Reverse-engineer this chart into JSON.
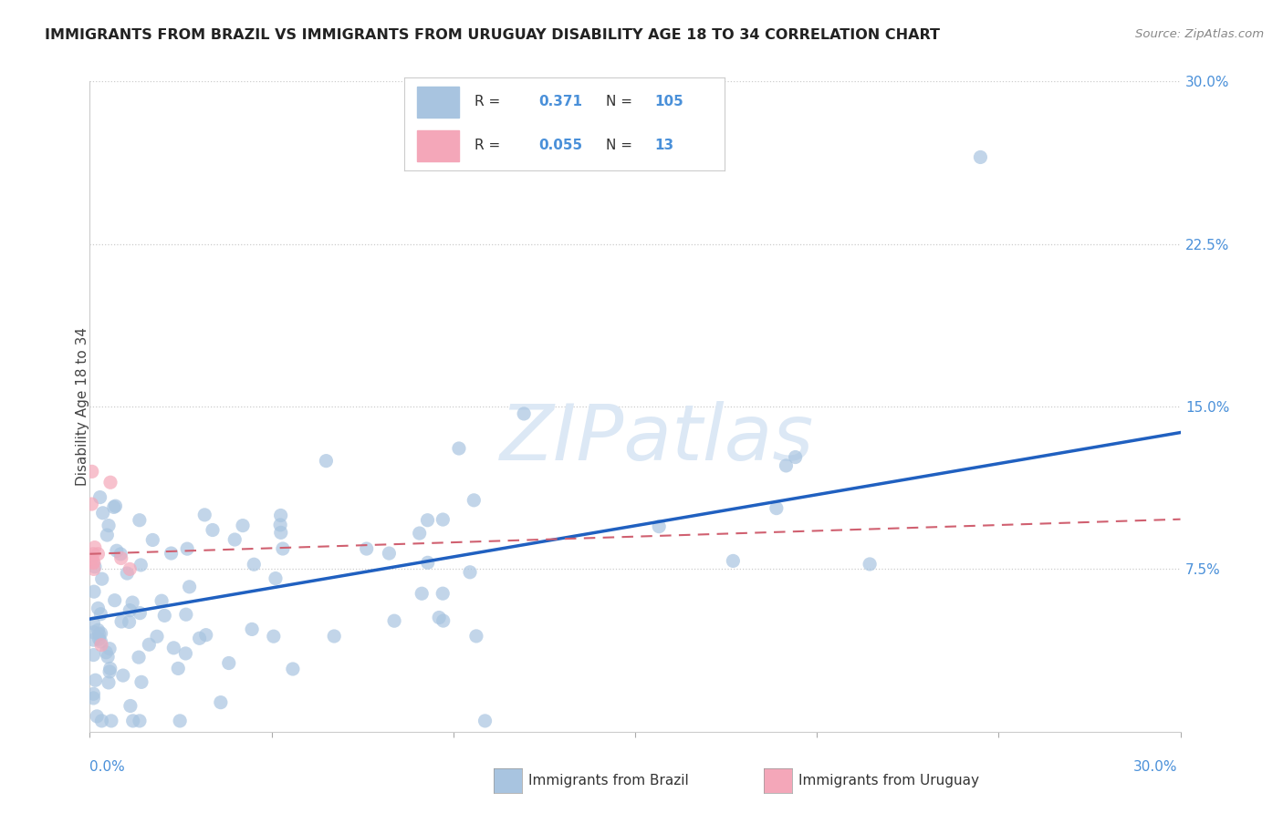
{
  "title": "IMMIGRANTS FROM BRAZIL VS IMMIGRANTS FROM URUGUAY DISABILITY AGE 18 TO 34 CORRELATION CHART",
  "source": "Source: ZipAtlas.com",
  "ylabel": "Disability Age 18 to 34",
  "x_min": 0.0,
  "x_max": 0.3,
  "y_min": 0.0,
  "y_max": 0.3,
  "yticks_right": [
    0.075,
    0.15,
    0.225,
    0.3
  ],
  "yticks_right_labels": [
    "7.5%",
    "15.0%",
    "22.5%",
    "30.0%"
  ],
  "brazil_R": 0.371,
  "brazil_N": 105,
  "uruguay_R": 0.055,
  "uruguay_N": 13,
  "brazil_color": "#a8c4e0",
  "uruguay_color": "#f4a7b9",
  "brazil_line_color": "#2060c0",
  "uruguay_line_color": "#d06070",
  "legend_brazil_label": "Immigrants from Brazil",
  "legend_uruguay_label": "Immigrants from Uruguay",
  "brazil_line_x0": 0.0,
  "brazil_line_y0": 0.052,
  "brazil_line_x1": 0.3,
  "brazil_line_y1": 0.138,
  "uruguay_line_x0": 0.0,
  "uruguay_line_y0": 0.082,
  "uruguay_line_x1": 0.3,
  "uruguay_line_y1": 0.098
}
